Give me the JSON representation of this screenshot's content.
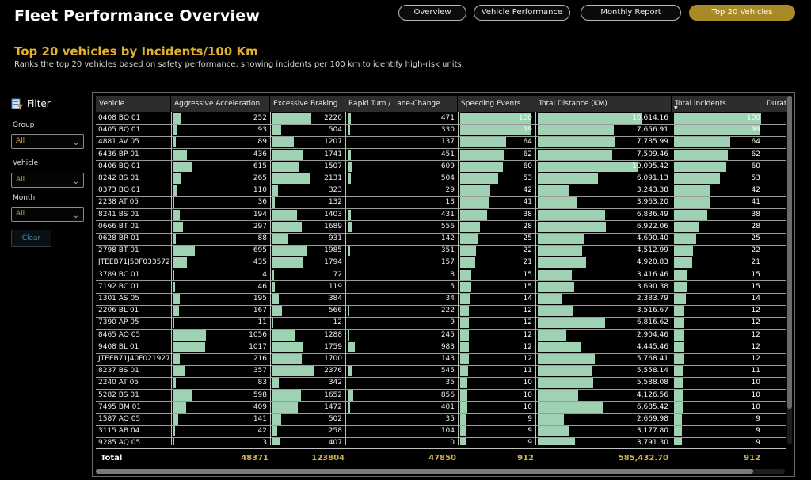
{
  "app": {
    "title": "Fleet Performance Overview"
  },
  "nav": {
    "tabs": [
      {
        "label": "Overview",
        "active": false
      },
      {
        "label": "Vehicle Performance",
        "active": false
      },
      {
        "label": "Monthly Report",
        "active": false
      },
      {
        "label": "Top 20 Vehicles",
        "active": true
      }
    ]
  },
  "section": {
    "title": "Top 20 vehicles by Incidents/100 Km",
    "subtitle": "Ranks the top 20 vehicles based on safety performance, showing incidents per 100 km to identify high-risk units."
  },
  "filter": {
    "title": "Filter",
    "fields": [
      {
        "label": "Group",
        "value": "All"
      },
      {
        "label": "Vehicle",
        "value": "All"
      },
      {
        "label": "Month",
        "value": "All"
      }
    ],
    "clear_label": "Clear"
  },
  "colors": {
    "accent": "#a88a27",
    "bar": "#9ed2b2",
    "title": "#e0b030"
  },
  "table": {
    "columns": [
      "Vehicle",
      "Aggressive Acceleration",
      "Excessive Braking",
      "Rapid Turn / Lane-Change",
      "Speeding Events",
      "Total Distance (KM)",
      "Total Incidents",
      "Durat"
    ],
    "sorted_column": "Total Incidents",
    "rows": [
      {
        "vehicle": "0408 BQ 01",
        "accel": "252",
        "braking": "2220",
        "turn": "471",
        "speeding": "100",
        "distance": "10,614.16",
        "incidents": "100"
      },
      {
        "vehicle": "0405 BQ 01",
        "accel": "93",
        "braking": "504",
        "turn": "330",
        "speeding": "99",
        "distance": "7,656.91",
        "incidents": "99"
      },
      {
        "vehicle": "4881 AV 05",
        "accel": "89",
        "braking": "1207",
        "turn": "137",
        "speeding": "64",
        "distance": "7,785.99",
        "incidents": "64"
      },
      {
        "vehicle": "6436 BP 01",
        "accel": "436",
        "braking": "1741",
        "turn": "451",
        "speeding": "62",
        "distance": "7,509.46",
        "incidents": "62"
      },
      {
        "vehicle": "0406 BQ 01",
        "accel": "615",
        "braking": "1507",
        "turn": "609",
        "speeding": "60",
        "distance": "10,095.42",
        "incidents": "60"
      },
      {
        "vehicle": "8242 BS 01",
        "accel": "265",
        "braking": "2131",
        "turn": "504",
        "speeding": "53",
        "distance": "6,091.13",
        "incidents": "53"
      },
      {
        "vehicle": "0373 BQ 01",
        "accel": "110",
        "braking": "323",
        "turn": "29",
        "speeding": "42",
        "distance": "3,243.38",
        "incidents": "42"
      },
      {
        "vehicle": "2238 AT 05",
        "accel": "36",
        "braking": "132",
        "turn": "13",
        "speeding": "41",
        "distance": "3,963.20",
        "incidents": "41"
      },
      {
        "vehicle": "8241 BS 01",
        "accel": "194",
        "braking": "1403",
        "turn": "431",
        "speeding": "38",
        "distance": "6,836.49",
        "incidents": "38"
      },
      {
        "vehicle": "0666 BT 01",
        "accel": "297",
        "braking": "1689",
        "turn": "556",
        "speeding": "28",
        "distance": "6,922.06",
        "incidents": "28"
      },
      {
        "vehicle": "0628 BR 01",
        "accel": "88",
        "braking": "931",
        "turn": "142",
        "speeding": "25",
        "distance": "4,690.40",
        "incidents": "25"
      },
      {
        "vehicle": "2798 BT 01",
        "accel": "695",
        "braking": "1985",
        "turn": "351",
        "speeding": "22",
        "distance": "4,512.99",
        "incidents": "22"
      },
      {
        "vehicle": "JTEEB71J50F033572",
        "accel": "435",
        "braking": "1794",
        "turn": "157",
        "speeding": "21",
        "distance": "4,920.83",
        "incidents": "21"
      },
      {
        "vehicle": "3789 BC 01",
        "accel": "4",
        "braking": "72",
        "turn": "8",
        "speeding": "15",
        "distance": "3,416.46",
        "incidents": "15"
      },
      {
        "vehicle": "7192 BC 01",
        "accel": "46",
        "braking": "119",
        "turn": "5",
        "speeding": "15",
        "distance": "3,690.38",
        "incidents": "15"
      },
      {
        "vehicle": "1301 AS 05",
        "accel": "195",
        "braking": "384",
        "turn": "34",
        "speeding": "14",
        "distance": "2,383.79",
        "incidents": "14"
      },
      {
        "vehicle": "2206 BL 01",
        "accel": "167",
        "braking": "566",
        "turn": "222",
        "speeding": "12",
        "distance": "3,516.67",
        "incidents": "12"
      },
      {
        "vehicle": "7390 AP 05",
        "accel": "11",
        "braking": "12",
        "turn": "9",
        "speeding": "12",
        "distance": "6,816.62",
        "incidents": "12"
      },
      {
        "vehicle": "8465 AQ 05",
        "accel": "1056",
        "braking": "1288",
        "turn": "245",
        "speeding": "12",
        "distance": "2,904.46",
        "incidents": "12"
      },
      {
        "vehicle": "9408 BL 01",
        "accel": "1017",
        "braking": "1759",
        "turn": "983",
        "speeding": "12",
        "distance": "4,445.46",
        "incidents": "12"
      },
      {
        "vehicle": "JTEEB71J40F021927",
        "accel": "216",
        "braking": "1700",
        "turn": "143",
        "speeding": "12",
        "distance": "5,768.41",
        "incidents": "12"
      },
      {
        "vehicle": "8237 BS 01",
        "accel": "357",
        "braking": "2376",
        "turn": "545",
        "speeding": "11",
        "distance": "5,558.14",
        "incidents": "11"
      },
      {
        "vehicle": "2240 AT 05",
        "accel": "83",
        "braking": "342",
        "turn": "35",
        "speeding": "10",
        "distance": "5,588.08",
        "incidents": "10"
      },
      {
        "vehicle": "5282 BS 01",
        "accel": "598",
        "braking": "1652",
        "turn": "856",
        "speeding": "10",
        "distance": "4,126.56",
        "incidents": "10"
      },
      {
        "vehicle": "7495 BM 01",
        "accel": "409",
        "braking": "1472",
        "turn": "401",
        "speeding": "10",
        "distance": "6,685.42",
        "incidents": "10"
      },
      {
        "vehicle": "1587 AQ 05",
        "accel": "141",
        "braking": "502",
        "turn": "35",
        "speeding": "9",
        "distance": "2,669.98",
        "incidents": "9"
      },
      {
        "vehicle": "3115 AB 04",
        "accel": "42",
        "braking": "258",
        "turn": "104",
        "speeding": "9",
        "distance": "3,177.80",
        "incidents": "9"
      },
      {
        "vehicle": "9285 AQ 05",
        "accel": "3",
        "braking": "407",
        "turn": "0",
        "speeding": "9",
        "distance": "3,791.30",
        "incidents": "9"
      }
    ],
    "totals": {
      "label": "Total",
      "accel": "48371",
      "braking": "123804",
      "turn": "47850",
      "speeding": "912",
      "distance": "585,432.70",
      "incidents": "912"
    }
  }
}
